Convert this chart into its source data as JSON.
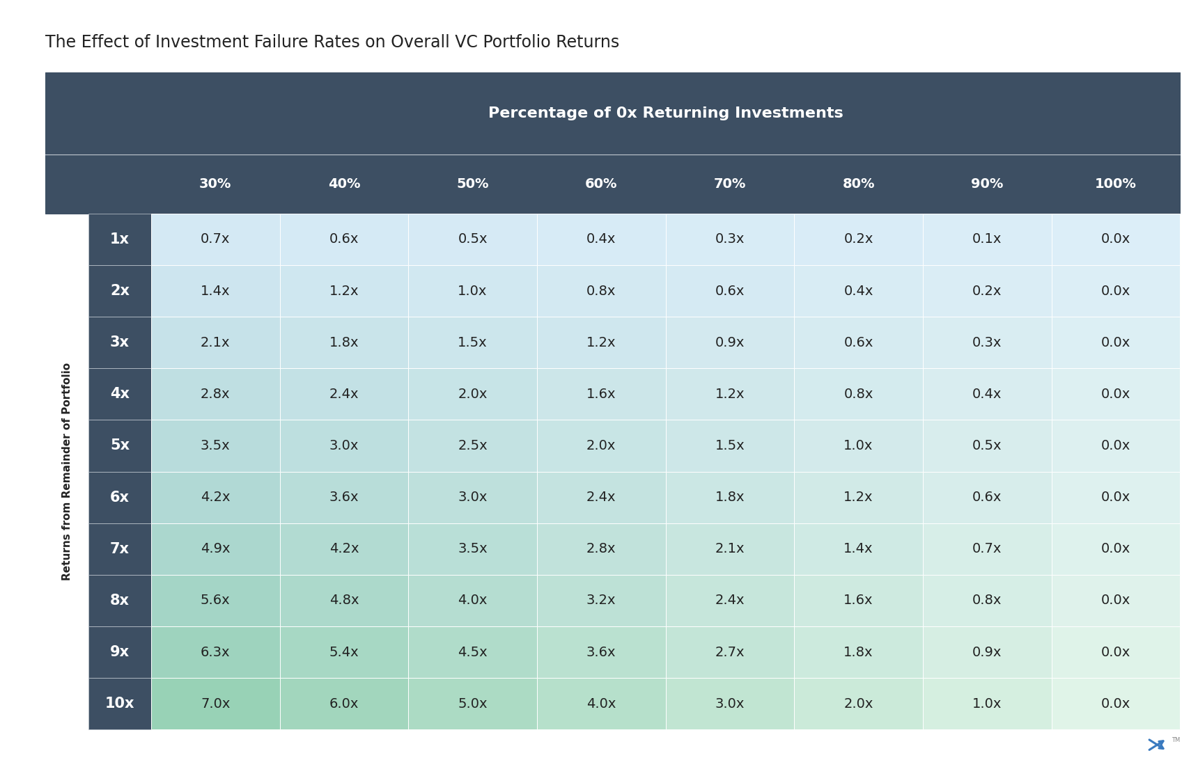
{
  "title": "The Effect of Investment Failure Rates on Overall VC Portfolio Returns",
  "col_header_label": "Percentage of 0x Returning Investments",
  "row_header_label": "Returns from Remainder of Portfolio",
  "col_headers": [
    "30%",
    "40%",
    "50%",
    "60%",
    "70%",
    "80%",
    "90%",
    "100%"
  ],
  "row_headers": [
    "1x",
    "2x",
    "3x",
    "4x",
    "5x",
    "6x",
    "7x",
    "8x",
    "9x",
    "10x"
  ],
  "values": [
    [
      0.7,
      0.6,
      0.5,
      0.4,
      0.3,
      0.2,
      0.1,
      0.0
    ],
    [
      1.4,
      1.2,
      1.0,
      0.8,
      0.6,
      0.4,
      0.2,
      0.0
    ],
    [
      2.1,
      1.8,
      1.5,
      1.2,
      0.9,
      0.6,
      0.3,
      0.0
    ],
    [
      2.8,
      2.4,
      2.0,
      1.6,
      1.2,
      0.8,
      0.4,
      0.0
    ],
    [
      3.5,
      3.0,
      2.5,
      2.0,
      1.5,
      1.0,
      0.5,
      0.0
    ],
    [
      4.2,
      3.6,
      3.0,
      2.4,
      1.8,
      1.2,
      0.6,
      0.0
    ],
    [
      4.9,
      4.2,
      3.5,
      2.8,
      2.1,
      1.4,
      0.7,
      0.0
    ],
    [
      5.6,
      4.8,
      4.0,
      3.2,
      2.4,
      1.6,
      0.8,
      0.0
    ],
    [
      6.3,
      5.4,
      4.5,
      3.6,
      2.7,
      1.8,
      0.9,
      0.0
    ],
    [
      7.0,
      6.0,
      5.0,
      4.0,
      3.0,
      2.0,
      1.0,
      0.0
    ]
  ],
  "bg_color": "#ffffff",
  "header_bg_dark": "#3d4f63",
  "header_text_color": "#ffffff",
  "title_color": "#222222",
  "cell_text_color": "#222222",
  "title_fontsize": 17,
  "header_fontsize": 14,
  "cell_fontsize": 14,
  "row_label_fontsize": 15,
  "logo_color": "#3a7abf",
  "separator_color": "#c0c8d0",
  "green_dark": [
    152,
    210,
    182
  ],
  "green_light": [
    224,
    244,
    232
  ],
  "blue_dark": [
    143,
    192,
    214
  ],
  "blue_light": [
    220,
    238,
    248
  ]
}
